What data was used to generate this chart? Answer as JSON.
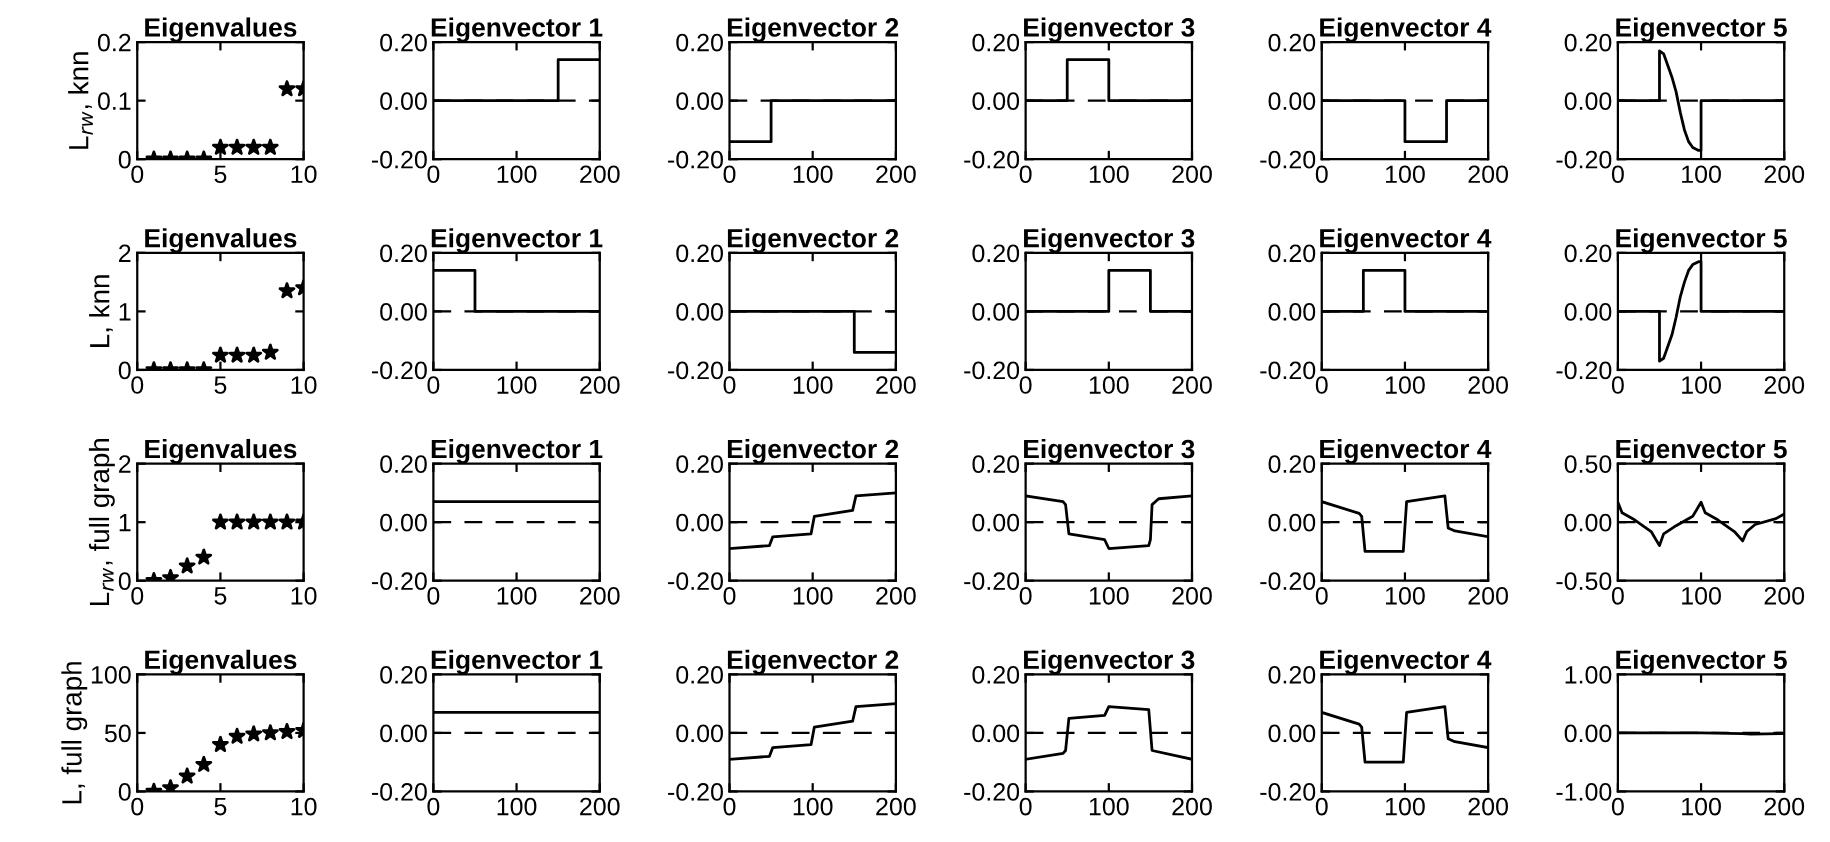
{
  "chart_data": [
    {
      "type": "scatter",
      "title": "Eigenvalues",
      "ylabel": "L$_{rw}$, knn",
      "marker": "star",
      "x": [
        1,
        2,
        3,
        4,
        5,
        6,
        7,
        8,
        9,
        10
      ],
      "series": [
        {
          "color": "#000000",
          "values": [
            0,
            0,
            0,
            0,
            0.02,
            0.02,
            0.02,
            0.02,
            0.12,
            0.12
          ]
        }
      ],
      "xlim": [
        0,
        10
      ],
      "xticks": [
        0,
        5,
        10
      ],
      "ylim": [
        0,
        0.2
      ],
      "yticks": [
        0,
        0.1,
        0.2
      ]
    },
    {
      "type": "line",
      "title": "Eigenvector 1",
      "series": [
        {
          "color": "#000000",
          "x": [
            0,
            150,
            150,
            200
          ],
          "values": [
            0,
            0,
            0.14,
            0.14
          ]
        }
      ],
      "xlim": [
        0,
        200
      ],
      "xticks": [
        0,
        100,
        200
      ],
      "ylim": [
        -0.2,
        0.2
      ],
      "yticks": [
        {
          "value": -0.2,
          "label": "-0.20"
        },
        {
          "value": 0,
          "label": "0.00"
        },
        {
          "value": 0.2,
          "label": "0.20"
        }
      ],
      "ref_lines": [
        {
          "axis": "y",
          "value": 0,
          "line_style": "dashed",
          "color": "#000000"
        }
      ]
    },
    {
      "type": "line",
      "title": "Eigenvector 2",
      "series": [
        {
          "color": "#000000",
          "x": [
            0,
            50,
            50,
            200
          ],
          "values": [
            -0.14,
            -0.14,
            0,
            0
          ]
        }
      ],
      "xlim": [
        0,
        200
      ],
      "xticks": [
        0,
        100,
        200
      ],
      "ylim": [
        -0.2,
        0.2
      ],
      "yticks": [
        {
          "value": -0.2,
          "label": "-0.20"
        },
        {
          "value": 0,
          "label": "0.00"
        },
        {
          "value": 0.2,
          "label": "0.20"
        }
      ],
      "ref_lines": [
        {
          "axis": "y",
          "value": 0,
          "line_style": "dashed",
          "color": "#000000"
        }
      ]
    },
    {
      "type": "line",
      "title": "Eigenvector 3",
      "series": [
        {
          "color": "#000000",
          "x": [
            0,
            50,
            50,
            100,
            100,
            200
          ],
          "values": [
            0,
            0,
            0.14,
            0.14,
            0,
            0
          ]
        }
      ],
      "xlim": [
        0,
        200
      ],
      "xticks": [
        0,
        100,
        200
      ],
      "ylim": [
        -0.2,
        0.2
      ],
      "yticks": [
        {
          "value": -0.2,
          "label": "-0.20"
        },
        {
          "value": 0,
          "label": "0.00"
        },
        {
          "value": 0.2,
          "label": "0.20"
        }
      ],
      "ref_lines": [
        {
          "axis": "y",
          "value": 0,
          "line_style": "dashed",
          "color": "#000000"
        }
      ]
    },
    {
      "type": "line",
      "title": "Eigenvector 4",
      "series": [
        {
          "color": "#000000",
          "x": [
            0,
            100,
            100,
            150,
            150,
            200
          ],
          "values": [
            0,
            0,
            -0.14,
            -0.14,
            0,
            0
          ]
        }
      ],
      "xlim": [
        0,
        200
      ],
      "xticks": [
        0,
        100,
        200
      ],
      "ylim": [
        -0.2,
        0.2
      ],
      "yticks": [
        {
          "value": -0.2,
          "label": "-0.20"
        },
        {
          "value": 0,
          "label": "0.00"
        },
        {
          "value": 0.2,
          "label": "0.20"
        }
      ],
      "ref_lines": [
        {
          "axis": "y",
          "value": 0,
          "line_style": "dashed",
          "color": "#000000"
        }
      ]
    },
    {
      "type": "line",
      "title": "Eigenvector 5",
      "series": [
        {
          "color": "#000000",
          "x": [
            0,
            50,
            50,
            55,
            60,
            65,
            70,
            75,
            80,
            85,
            90,
            97,
            100,
            100,
            200
          ],
          "values": [
            0,
            0,
            0.17,
            0.16,
            0.12,
            0.08,
            0.03,
            -0.04,
            -0.1,
            -0.14,
            -0.16,
            -0.17,
            -0.17,
            0,
            0
          ]
        }
      ],
      "xlim": [
        0,
        200
      ],
      "xticks": [
        0,
        100,
        200
      ],
      "ylim": [
        -0.2,
        0.2
      ],
      "yticks": [
        {
          "value": -0.2,
          "label": "-0.20"
        },
        {
          "value": 0,
          "label": "0.00"
        },
        {
          "value": 0.2,
          "label": "0.20"
        }
      ],
      "ref_lines": [
        {
          "axis": "y",
          "value": 0,
          "line_style": "dashed",
          "color": "#000000"
        }
      ]
    },
    {
      "type": "scatter",
      "title": "Eigenvalues",
      "ylabel": "L, knn",
      "marker": "star",
      "x": [
        1,
        2,
        3,
        4,
        5,
        6,
        7,
        8,
        9,
        10
      ],
      "series": [
        {
          "color": "#000000",
          "values": [
            0,
            0,
            0,
            0,
            0.25,
            0.25,
            0.25,
            0.3,
            1.35,
            1.4
          ]
        }
      ],
      "xlim": [
        0,
        10
      ],
      "xticks": [
        0,
        5,
        10
      ],
      "ylim": [
        0,
        2
      ],
      "yticks": [
        0,
        1,
        2
      ]
    },
    {
      "type": "line",
      "title": "Eigenvector 1",
      "series": [
        {
          "color": "#000000",
          "x": [
            0,
            50,
            50,
            200
          ],
          "values": [
            0.14,
            0.14,
            0,
            0
          ]
        }
      ],
      "xlim": [
        0,
        200
      ],
      "xticks": [
        0,
        100,
        200
      ],
      "ylim": [
        -0.2,
        0.2
      ],
      "yticks": [
        {
          "value": -0.2,
          "label": "-0.20"
        },
        {
          "value": 0,
          "label": "0.00"
        },
        {
          "value": 0.2,
          "label": "0.20"
        }
      ],
      "ref_lines": [
        {
          "axis": "y",
          "value": 0,
          "line_style": "dashed",
          "color": "#000000"
        }
      ]
    },
    {
      "type": "line",
      "title": "Eigenvector 2",
      "series": [
        {
          "color": "#000000",
          "x": [
            0,
            150,
            150,
            200
          ],
          "values": [
            0,
            0,
            -0.14,
            -0.14
          ]
        }
      ],
      "xlim": [
        0,
        200
      ],
      "xticks": [
        0,
        100,
        200
      ],
      "ylim": [
        -0.2,
        0.2
      ],
      "yticks": [
        {
          "value": -0.2,
          "label": "-0.20"
        },
        {
          "value": 0,
          "label": "0.00"
        },
        {
          "value": 0.2,
          "label": "0.20"
        }
      ],
      "ref_lines": [
        {
          "axis": "y",
          "value": 0,
          "line_style": "dashed",
          "color": "#000000"
        }
      ]
    },
    {
      "type": "line",
      "title": "Eigenvector 3",
      "series": [
        {
          "color": "#000000",
          "x": [
            0,
            100,
            100,
            150,
            150,
            200
          ],
          "values": [
            0,
            0,
            0.14,
            0.14,
            0,
            0
          ]
        }
      ],
      "xlim": [
        0,
        200
      ],
      "xticks": [
        0,
        100,
        200
      ],
      "ylim": [
        -0.2,
        0.2
      ],
      "yticks": [
        {
          "value": -0.2,
          "label": "-0.20"
        },
        {
          "value": 0,
          "label": "0.00"
        },
        {
          "value": 0.2,
          "label": "0.20"
        }
      ],
      "ref_lines": [
        {
          "axis": "y",
          "value": 0,
          "line_style": "dashed",
          "color": "#000000"
        }
      ]
    },
    {
      "type": "line",
      "title": "Eigenvector 4",
      "series": [
        {
          "color": "#000000",
          "x": [
            0,
            50,
            50,
            100,
            100,
            200
          ],
          "values": [
            0,
            0,
            0.14,
            0.14,
            0,
            0
          ]
        }
      ],
      "xlim": [
        0,
        200
      ],
      "xticks": [
        0,
        100,
        200
      ],
      "ylim": [
        -0.2,
        0.2
      ],
      "yticks": [
        {
          "value": -0.2,
          "label": "-0.20"
        },
        {
          "value": 0,
          "label": "0.00"
        },
        {
          "value": 0.2,
          "label": "0.20"
        }
      ],
      "ref_lines": [
        {
          "axis": "y",
          "value": 0,
          "line_style": "dashed",
          "color": "#000000"
        }
      ]
    },
    {
      "type": "line",
      "title": "Eigenvector 5",
      "series": [
        {
          "color": "#000000",
          "x": [
            0,
            50,
            50,
            55,
            60,
            65,
            70,
            75,
            80,
            85,
            90,
            97,
            100,
            100,
            200
          ],
          "values": [
            0,
            0,
            -0.17,
            -0.16,
            -0.12,
            -0.08,
            -0.02,
            0.05,
            0.1,
            0.14,
            0.16,
            0.17,
            0.17,
            0,
            0
          ]
        }
      ],
      "xlim": [
        0,
        200
      ],
      "xticks": [
        0,
        100,
        200
      ],
      "ylim": [
        -0.2,
        0.2
      ],
      "yticks": [
        {
          "value": -0.2,
          "label": "-0.20"
        },
        {
          "value": 0,
          "label": "0.00"
        },
        {
          "value": 0.2,
          "label": "0.20"
        }
      ],
      "ref_lines": [
        {
          "axis": "y",
          "value": 0,
          "line_style": "dashed",
          "color": "#000000"
        }
      ]
    },
    {
      "type": "scatter",
      "title": "Eigenvalues",
      "ylabel": "L$_{rw}$, full graph",
      "marker": "star",
      "x": [
        1,
        2,
        3,
        4,
        5,
        6,
        7,
        8,
        9,
        10
      ],
      "series": [
        {
          "color": "#000000",
          "values": [
            0,
            0.05,
            0.25,
            0.4,
            1,
            1,
            1,
            1,
            1,
            1
          ]
        }
      ],
      "xlim": [
        0,
        10
      ],
      "xticks": [
        0,
        5,
        10
      ],
      "ylim": [
        0,
        2
      ],
      "yticks": [
        0,
        1,
        2
      ]
    },
    {
      "type": "line",
      "title": "Eigenvector 1",
      "series": [
        {
          "color": "#000000",
          "x": [
            0,
            200
          ],
          "values": [
            0.07,
            0.07
          ]
        }
      ],
      "xlim": [
        0,
        200
      ],
      "xticks": [
        0,
        100,
        200
      ],
      "ylim": [
        -0.2,
        0.2
      ],
      "yticks": [
        {
          "value": -0.2,
          "label": "-0.20"
        },
        {
          "value": 0,
          "label": "0.00"
        },
        {
          "value": 0.2,
          "label": "0.20"
        }
      ],
      "ref_lines": [
        {
          "axis": "y",
          "value": 0,
          "line_style": "dashed",
          "color": "#000000"
        }
      ]
    },
    {
      "type": "line",
      "title": "Eigenvector 2",
      "series": [
        {
          "color": "#000000",
          "x": [
            0,
            48,
            52,
            98,
            102,
            148,
            152,
            200
          ],
          "values": [
            -0.09,
            -0.08,
            -0.05,
            -0.04,
            0.02,
            0.04,
            0.09,
            0.1
          ]
        }
      ],
      "xlim": [
        0,
        200
      ],
      "xticks": [
        0,
        100,
        200
      ],
      "ylim": [
        -0.2,
        0.2
      ],
      "yticks": [
        {
          "value": -0.2,
          "label": "-0.20"
        },
        {
          "value": 0,
          "label": "0.00"
        },
        {
          "value": 0.2,
          "label": "0.20"
        }
      ],
      "ref_lines": [
        {
          "axis": "y",
          "value": 0,
          "line_style": "dashed",
          "color": "#000000"
        }
      ]
    },
    {
      "type": "line",
      "title": "Eigenvector 3",
      "series": [
        {
          "color": "#000000",
          "x": [
            0,
            45,
            48,
            52,
            95,
            100,
            148,
            150,
            152,
            160,
            200
          ],
          "values": [
            0.09,
            0.07,
            0.06,
            -0.04,
            -0.06,
            -0.09,
            -0.08,
            -0.06,
            0.06,
            0.08,
            0.09
          ]
        }
      ],
      "xlim": [
        0,
        200
      ],
      "xticks": [
        0,
        100,
        200
      ],
      "ylim": [
        -0.2,
        0.2
      ],
      "yticks": [
        {
          "value": -0.2,
          "label": "-0.20"
        },
        {
          "value": 0,
          "label": "0.00"
        },
        {
          "value": 0.2,
          "label": "0.20"
        }
      ],
      "ref_lines": [
        {
          "axis": "y",
          "value": 0,
          "line_style": "dashed",
          "color": "#000000"
        }
      ]
    },
    {
      "type": "line",
      "title": "Eigenvector 4",
      "series": [
        {
          "color": "#000000",
          "x": [
            0,
            45,
            48,
            52,
            98,
            102,
            148,
            152,
            160,
            200
          ],
          "values": [
            0.07,
            0.03,
            0.02,
            -0.1,
            -0.1,
            0.07,
            0.09,
            -0.02,
            -0.03,
            -0.05
          ]
        }
      ],
      "xlim": [
        0,
        200
      ],
      "xticks": [
        0,
        100,
        200
      ],
      "ylim": [
        -0.2,
        0.2
      ],
      "yticks": [
        {
          "value": -0.2,
          "label": "-0.20"
        },
        {
          "value": 0,
          "label": "0.00"
        },
        {
          "value": 0.2,
          "label": "0.20"
        }
      ],
      "ref_lines": [
        {
          "axis": "y",
          "value": 0,
          "line_style": "dashed",
          "color": "#000000"
        }
      ]
    },
    {
      "type": "line",
      "title": "Eigenvector 5",
      "series": [
        {
          "color": "#000000",
          "x": [
            0,
            5,
            20,
            40,
            50,
            55,
            70,
            90,
            100,
            105,
            120,
            140,
            150,
            155,
            165,
            190,
            200
          ],
          "values": [
            0.17,
            0.08,
            0.02,
            -0.08,
            -0.2,
            -0.1,
            -0.03,
            0.05,
            0.17,
            0.08,
            0.02,
            -0.08,
            -0.16,
            -0.08,
            -0.02,
            0.03,
            0.07
          ]
        }
      ],
      "xlim": [
        0,
        200
      ],
      "xticks": [
        0,
        100,
        200
      ],
      "ylim": [
        -0.5,
        0.5
      ],
      "yticks": [
        {
          "value": -0.5,
          "label": "-0.50"
        },
        {
          "value": 0,
          "label": "0.00"
        },
        {
          "value": 0.5,
          "label": "0.50"
        }
      ],
      "ref_lines": [
        {
          "axis": "y",
          "value": 0,
          "line_style": "dashed",
          "color": "#000000"
        }
      ]
    },
    {
      "type": "scatter",
      "title": "Eigenvalues",
      "ylabel": "L, full graph",
      "marker": "star",
      "x": [
        1,
        2,
        3,
        4,
        5,
        6,
        7,
        8,
        9,
        10
      ],
      "series": [
        {
          "color": "#000000",
          "values": [
            0,
            3,
            13,
            23,
            40,
            47,
            49,
            50,
            51,
            52
          ]
        }
      ],
      "xlim": [
        0,
        10
      ],
      "xticks": [
        0,
        5,
        10
      ],
      "ylim": [
        0,
        100
      ],
      "yticks": [
        0,
        50,
        100
      ]
    },
    {
      "type": "line",
      "title": "Eigenvector 1",
      "series": [
        {
          "color": "#000000",
          "x": [
            0,
            200
          ],
          "values": [
            0.07,
            0.07
          ]
        }
      ],
      "xlim": [
        0,
        200
      ],
      "xticks": [
        0,
        100,
        200
      ],
      "ylim": [
        -0.2,
        0.2
      ],
      "yticks": [
        {
          "value": -0.2,
          "label": "-0.20"
        },
        {
          "value": 0,
          "label": "0.00"
        },
        {
          "value": 0.2,
          "label": "0.20"
        }
      ],
      "ref_lines": [
        {
          "axis": "y",
          "value": 0,
          "line_style": "dashed",
          "color": "#000000"
        }
      ]
    },
    {
      "type": "line",
      "title": "Eigenvector 2",
      "series": [
        {
          "color": "#000000",
          "x": [
            0,
            48,
            52,
            98,
            102,
            148,
            152,
            200
          ],
          "values": [
            -0.09,
            -0.08,
            -0.05,
            -0.04,
            0.02,
            0.04,
            0.09,
            0.1
          ]
        }
      ],
      "xlim": [
        0,
        200
      ],
      "xticks": [
        0,
        100,
        200
      ],
      "ylim": [
        -0.2,
        0.2
      ],
      "yticks": [
        {
          "value": -0.2,
          "label": "-0.20"
        },
        {
          "value": 0,
          "label": "0.00"
        },
        {
          "value": 0.2,
          "label": "0.20"
        }
      ],
      "ref_lines": [
        {
          "axis": "y",
          "value": 0,
          "line_style": "dashed",
          "color": "#000000"
        }
      ]
    },
    {
      "type": "line",
      "title": "Eigenvector 3",
      "series": [
        {
          "color": "#000000",
          "x": [
            0,
            45,
            48,
            52,
            95,
            100,
            148,
            152,
            200
          ],
          "values": [
            -0.09,
            -0.07,
            -0.06,
            0.05,
            0.06,
            0.09,
            0.08,
            -0.06,
            -0.09
          ]
        }
      ],
      "xlim": [
        0,
        200
      ],
      "xticks": [
        0,
        100,
        200
      ],
      "ylim": [
        -0.2,
        0.2
      ],
      "yticks": [
        {
          "value": -0.2,
          "label": "-0.20"
        },
        {
          "value": 0,
          "label": "0.00"
        },
        {
          "value": 0.2,
          "label": "0.20"
        }
      ],
      "ref_lines": [
        {
          "axis": "y",
          "value": 0,
          "line_style": "dashed",
          "color": "#000000"
        }
      ]
    },
    {
      "type": "line",
      "title": "Eigenvector 4",
      "series": [
        {
          "color": "#000000",
          "x": [
            0,
            45,
            48,
            52,
            98,
            102,
            148,
            152,
            160,
            200
          ],
          "values": [
            0.07,
            0.03,
            0.02,
            -0.1,
            -0.1,
            0.07,
            0.09,
            -0.02,
            -0.03,
            -0.05
          ]
        }
      ],
      "xlim": [
        0,
        200
      ],
      "xticks": [
        0,
        100,
        200
      ],
      "ylim": [
        -0.2,
        0.2
      ],
      "yticks": [
        {
          "value": -0.2,
          "label": "-0.20"
        },
        {
          "value": 0,
          "label": "0.00"
        },
        {
          "value": 0.2,
          "label": "0.20"
        }
      ],
      "ref_lines": [
        {
          "axis": "y",
          "value": 0,
          "line_style": "dashed",
          "color": "#000000"
        }
      ]
    },
    {
      "type": "line",
      "title": "Eigenvector 5",
      "series": [
        {
          "color": "#000000",
          "x": [
            0,
            100,
            150,
            160,
            200
          ],
          "values": [
            0,
            0,
            -0.01,
            -0.02,
            -0.01
          ]
        }
      ],
      "xlim": [
        0,
        200
      ],
      "xticks": [
        0,
        100,
        200
      ],
      "ylim": [
        -1,
        1
      ],
      "yticks": [
        {
          "value": -1,
          "label": "-1.00"
        },
        {
          "value": 0,
          "label": "0.00"
        },
        {
          "value": 1,
          "label": "1.00"
        }
      ],
      "ref_lines": [
        {
          "axis": "y",
          "value": 0,
          "line_style": "dashed",
          "color": "#000000"
        }
      ]
    }
  ]
}
